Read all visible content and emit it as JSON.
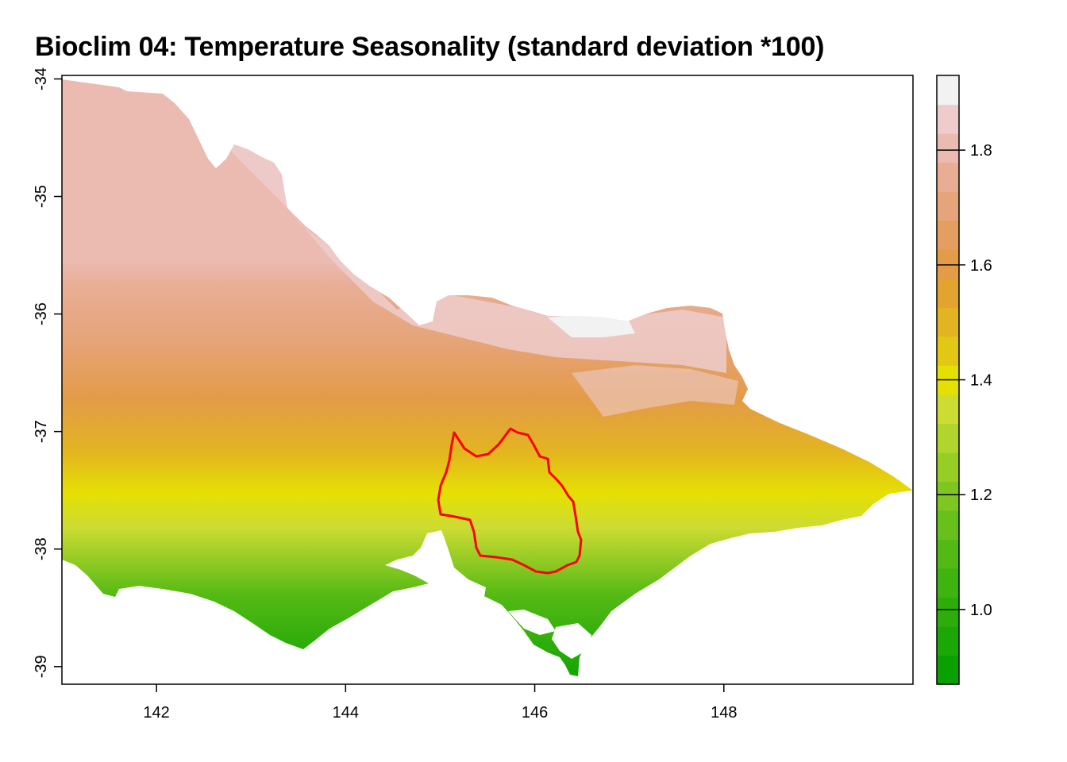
{
  "map": {
    "title": "Bioclim 04: Temperature Seasonality (standard deviation *100)",
    "x_axis": {
      "range": [
        141.0,
        150.0
      ],
      "ticks": [
        142,
        144,
        146,
        148
      ],
      "tick_labels": [
        "142",
        "144",
        "146",
        "148"
      ]
    },
    "y_axis": {
      "range": [
        -39.15,
        -33.97
      ],
      "ticks": [
        -34,
        -35,
        -36,
        -37,
        -38,
        -39
      ],
      "tick_labels": [
        "-34",
        "-35",
        "-36",
        "-37",
        "-38",
        "-39"
      ]
    },
    "legend": {
      "range": [
        0.87,
        1.93
      ],
      "ticks": [
        1.0,
        1.2,
        1.4,
        1.6,
        1.8
      ],
      "tick_labels": [
        "1.0",
        "1.2",
        "1.4",
        "1.6",
        "1.8"
      ],
      "colors": [
        "#0aa100",
        "#1ba705",
        "#2cad0a",
        "#3fb30f",
        "#53b914",
        "#68c01a",
        "#7fc720",
        "#97ce26",
        "#b1d52d",
        "#cddc33",
        "#e5e003",
        "#e3c813",
        "#e3b421",
        "#e3a330",
        "#e39b48",
        "#e49e5f",
        "#e6a47a",
        "#e8ad93",
        "#ebbab0",
        "#edcccb",
        "#f2f2f2"
      ]
    },
    "outline_color": "#ff0000"
  }
}
